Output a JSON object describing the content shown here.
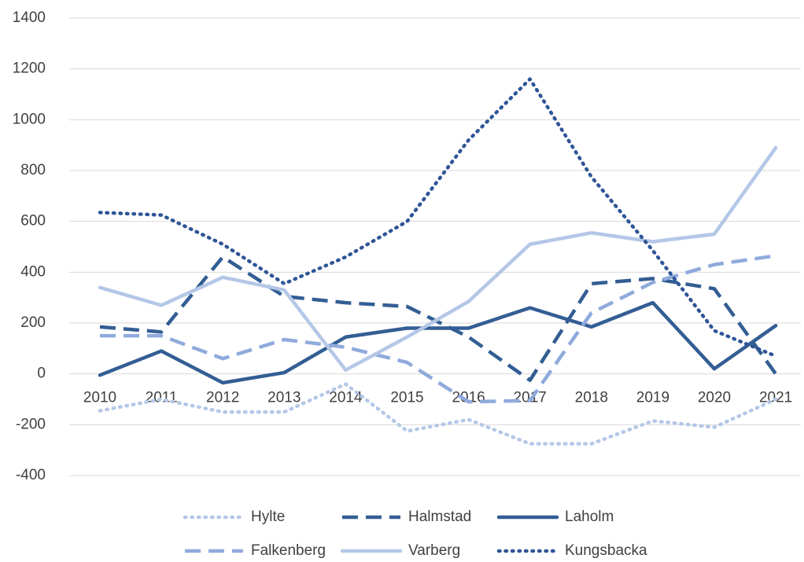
{
  "chart_data": {
    "type": "line",
    "categories": [
      "2010",
      "2011",
      "2012",
      "2013",
      "2014",
      "2015",
      "2016",
      "2017",
      "2018",
      "2019",
      "2020",
      "2021"
    ],
    "series": [
      {
        "name": "Hylte",
        "color": "#b4c7e7",
        "dash": "dot",
        "values": [
          -145,
          -100,
          -150,
          -150,
          -40,
          -225,
          -180,
          -275,
          -275,
          -185,
          -210,
          -100
        ]
      },
      {
        "name": "Halmstad",
        "color": "#335e94",
        "dash": "dash",
        "values": [
          185,
          165,
          460,
          305,
          280,
          265,
          145,
          -25,
          355,
          375,
          335,
          0
        ]
      },
      {
        "name": "Laholm",
        "color": "#335e94",
        "dash": "solid",
        "values": [
          -5,
          90,
          -35,
          5,
          145,
          180,
          180,
          260,
          185,
          280,
          20,
          190
        ]
      },
      {
        "name": "Falkenberg",
        "color": "#8faadc",
        "dash": "dash",
        "values": [
          150,
          150,
          60,
          135,
          105,
          45,
          -110,
          -105,
          240,
          360,
          430,
          465
        ]
      },
      {
        "name": "Varberg",
        "color": "#b4c7e7",
        "dash": "solid",
        "values": [
          340,
          270,
          380,
          330,
          15,
          145,
          285,
          510,
          555,
          520,
          550,
          890
        ]
      },
      {
        "name": "Kungsbacka",
        "color": "#2f5597",
        "dash": "dot",
        "values": [
          635,
          625,
          510,
          355,
          460,
          600,
          920,
          1160,
          775,
          485,
          170,
          70
        ]
      }
    ],
    "ylim": [
      -400,
      1400
    ],
    "yticks": [
      -400,
      -200,
      0,
      200,
      400,
      600,
      800,
      1000,
      1200,
      1400
    ],
    "grid": true
  }
}
